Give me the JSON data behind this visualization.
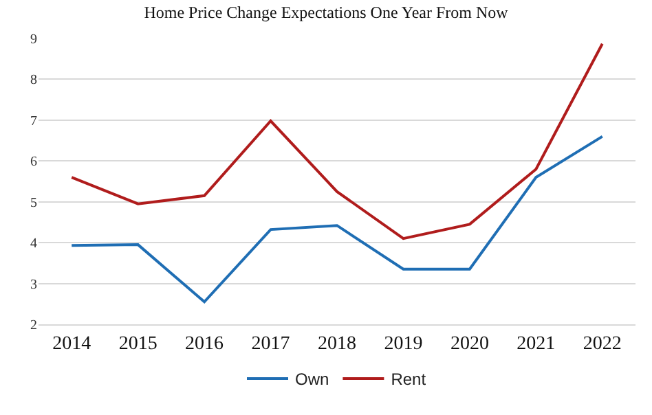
{
  "chart_data": {
    "type": "line",
    "title": "Home Price Change Expectations One Year From Now",
    "categories": [
      "2014",
      "2015",
      "2016",
      "2017",
      "2018",
      "2019",
      "2020",
      "2021",
      "2022"
    ],
    "series": [
      {
        "name": "Own",
        "color": "#1f6eb4",
        "values": [
          3.93,
          3.95,
          2.55,
          4.32,
          4.42,
          3.35,
          3.35,
          5.6,
          6.6
        ]
      },
      {
        "name": "Rent",
        "color": "#b01c1c",
        "values": [
          5.6,
          4.95,
          5.15,
          6.98,
          5.25,
          4.1,
          4.45,
          5.8,
          8.87
        ]
      }
    ],
    "ylim": [
      2,
      9
    ],
    "yticks": [
      2,
      3,
      4,
      5,
      6,
      7,
      8,
      9
    ],
    "grid": "y",
    "legend": "bottom",
    "marker": "none",
    "line_style": "solid"
  }
}
